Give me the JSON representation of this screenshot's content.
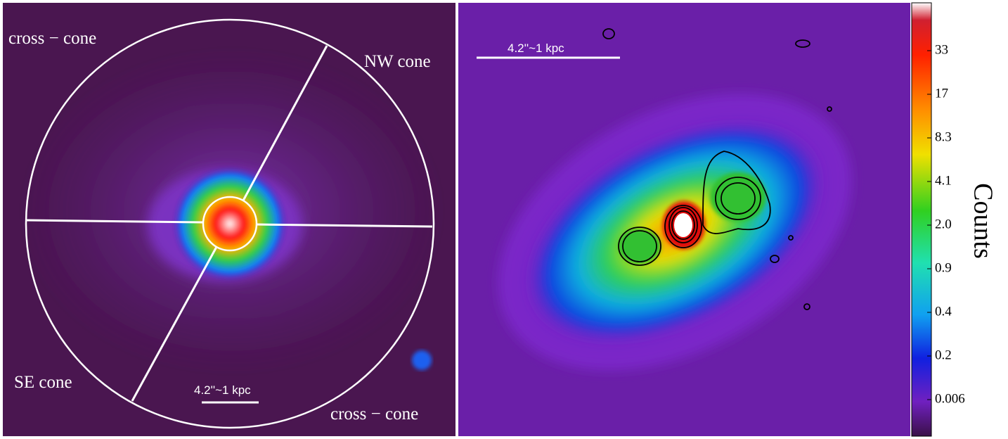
{
  "left_panel": {
    "region_labels": [
      "cross − cone",
      "NW cone",
      "SE cone",
      "cross − cone"
    ],
    "scale_label": "4.2''~1 kpc"
  },
  "right_panel": {
    "scale_label": "4.2''~1 kpc"
  },
  "colorbar": {
    "ticks": [
      "33",
      "17",
      "8.3",
      "4.1",
      "2.0",
      "0.9",
      "0.4",
      "0.2",
      "0.006"
    ],
    "label": "Counts"
  }
}
